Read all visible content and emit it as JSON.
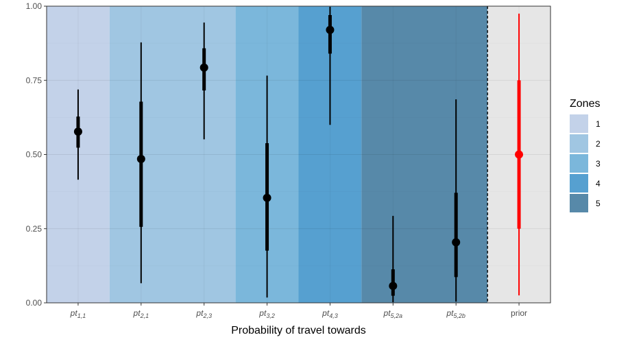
{
  "chart_data": {
    "type": "pointrange",
    "xlabel": "Probability of travel towards",
    "ylabel": "",
    "ylim": [
      0,
      1
    ],
    "yticks": [
      "0.00",
      "0.25",
      "0.50",
      "0.75",
      "1.00"
    ],
    "grid": true,
    "legend": {
      "title": "Zones",
      "placement": "right",
      "entries": [
        {
          "label": "1",
          "color": "#c3d2e9"
        },
        {
          "label": "2",
          "color": "#a0c6e2"
        },
        {
          "label": "3",
          "color": "#7bb7db"
        },
        {
          "label": "4",
          "color": "#56a0d0"
        },
        {
          "label": "5",
          "color": "#5789a9"
        }
      ]
    },
    "prior_background": "#e6e6e6",
    "categories": [
      {
        "label": "pt",
        "sub": "1,1",
        "zone": 1,
        "median": 0.577,
        "inner": [
          0.523,
          0.628
        ],
        "outer": [
          0.415,
          0.719
        ],
        "color": "#000000"
      },
      {
        "label": "pt",
        "sub": "2,1",
        "zone": 2,
        "median": 0.485,
        "inner": [
          0.256,
          0.678
        ],
        "outer": [
          0.066,
          0.878
        ],
        "color": "#000000"
      },
      {
        "label": "pt",
        "sub": "2,3",
        "zone": 2,
        "median": 0.793,
        "inner": [
          0.716,
          0.858
        ],
        "outer": [
          0.551,
          0.945
        ],
        "color": "#000000"
      },
      {
        "label": "pt",
        "sub": "3,2",
        "zone": 3,
        "median": 0.354,
        "inner": [
          0.176,
          0.538
        ],
        "outer": [
          0.018,
          0.766
        ],
        "color": "#000000"
      },
      {
        "label": "pt",
        "sub": "4,3",
        "zone": 4,
        "median": 0.92,
        "inner": [
          0.84,
          0.97
        ],
        "outer": [
          0.6,
          0.998
        ],
        "color": "#000000"
      },
      {
        "label": "pt",
        "sub": "5,2a",
        "zone": 5,
        "median": 0.057,
        "inner": [
          0.024,
          0.113
        ],
        "outer": [
          0.002,
          0.293
        ],
        "color": "#000000"
      },
      {
        "label": "pt",
        "sub": "5,2b",
        "zone": 5,
        "median": 0.204,
        "inner": [
          0.087,
          0.371
        ],
        "outer": [
          0.004,
          0.686
        ],
        "color": "#000000"
      },
      {
        "label": "prior",
        "sub": "",
        "zone": null,
        "median": 0.5,
        "inner": [
          0.25,
          0.75
        ],
        "outer": [
          0.025,
          0.975
        ],
        "color": "#ff0000"
      }
    ]
  }
}
